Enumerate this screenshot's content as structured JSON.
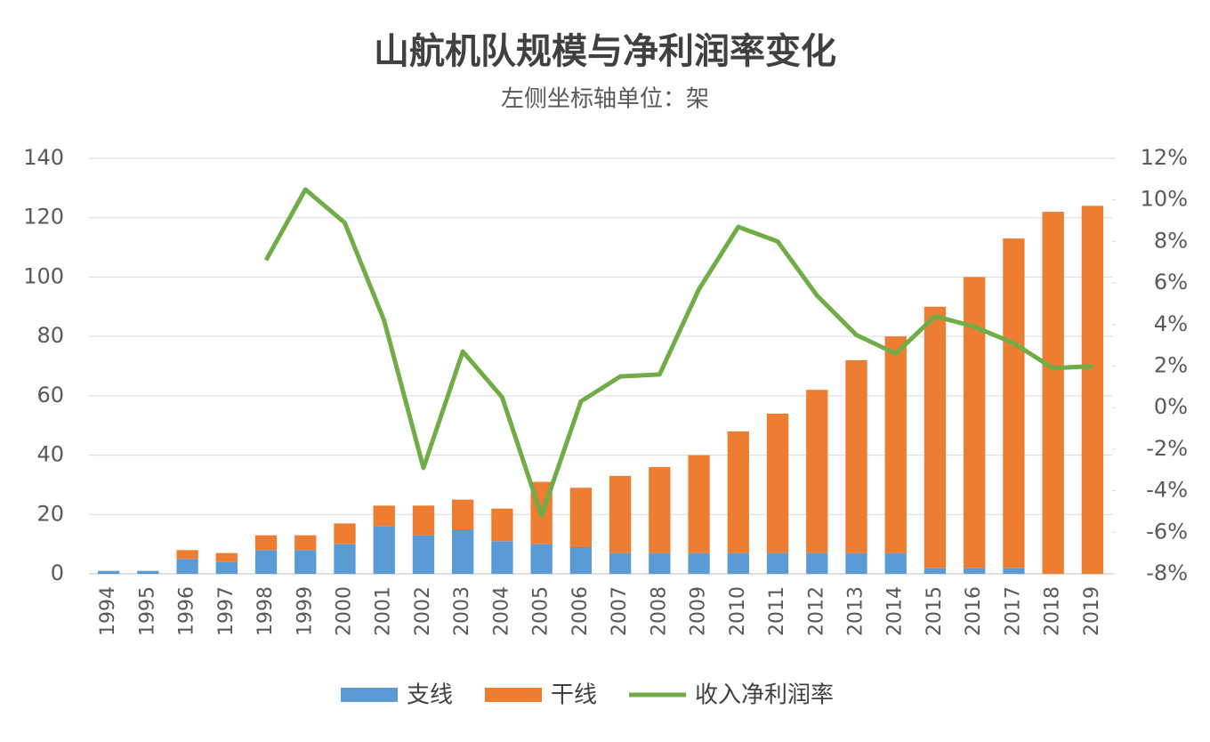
{
  "chart_data": {
    "type": "bar-line",
    "title": "山航机队规模与净利润率变化",
    "subtitle": "左侧坐标轴单位：架",
    "categories": [
      "1994",
      "1995",
      "1996",
      "1997",
      "1998",
      "1999",
      "2000",
      "2001",
      "2002",
      "2003",
      "2004",
      "2005",
      "2006",
      "2007",
      "2008",
      "2009",
      "2010",
      "2011",
      "2012",
      "2013",
      "2014",
      "2015",
      "2016",
      "2017",
      "2018",
      "2019"
    ],
    "series": [
      {
        "name": "支线",
        "color": "#5b9bd5",
        "type": "bar",
        "values": [
          1,
          1,
          5,
          4,
          8,
          8,
          10,
          16,
          13,
          15,
          11,
          10,
          9,
          7,
          7,
          7,
          7,
          7,
          7,
          7,
          7,
          2,
          2,
          2,
          0,
          0
        ]
      },
      {
        "name": "干线",
        "color": "#ed7d31",
        "type": "bar",
        "values": [
          0,
          0,
          3,
          3,
          5,
          5,
          7,
          7,
          10,
          10,
          11,
          21,
          20,
          26,
          29,
          33,
          41,
          47,
          55,
          65,
          73,
          88,
          98,
          111,
          122,
          124
        ]
      },
      {
        "name": "收入净利润率",
        "color": "#70ad47",
        "type": "line",
        "axis": "y2",
        "values": [
          null,
          null,
          null,
          null,
          7.1,
          10.5,
          8.9,
          4.2,
          -2.9,
          2.7,
          0.5,
          -5.2,
          0.3,
          1.5,
          1.6,
          5.7,
          8.7,
          8.0,
          5.4,
          3.5,
          2.6,
          4.4,
          3.9,
          3.1,
          1.9,
          2.0
        ]
      }
    ],
    "ylim": [
      0,
      140
    ],
    "yticks": [
      0,
      20,
      40,
      60,
      80,
      100,
      120,
      140
    ],
    "y2lim": [
      -8,
      12
    ],
    "y2ticks": [
      {
        "value": -8,
        "label": "-8%"
      },
      {
        "value": -6,
        "label": "-6%"
      },
      {
        "value": -4,
        "label": "-4%"
      },
      {
        "value": -2,
        "label": "-2%"
      },
      {
        "value": 0,
        "label": "0%"
      },
      {
        "value": 2,
        "label": "2%"
      },
      {
        "value": 4,
        "label": "4%"
      },
      {
        "value": 6,
        "label": "6%"
      },
      {
        "value": 8,
        "label": "8%"
      },
      {
        "value": 10,
        "label": "10%"
      },
      {
        "value": 12,
        "label": "12%"
      }
    ],
    "grid": true,
    "legend": "bottom"
  }
}
